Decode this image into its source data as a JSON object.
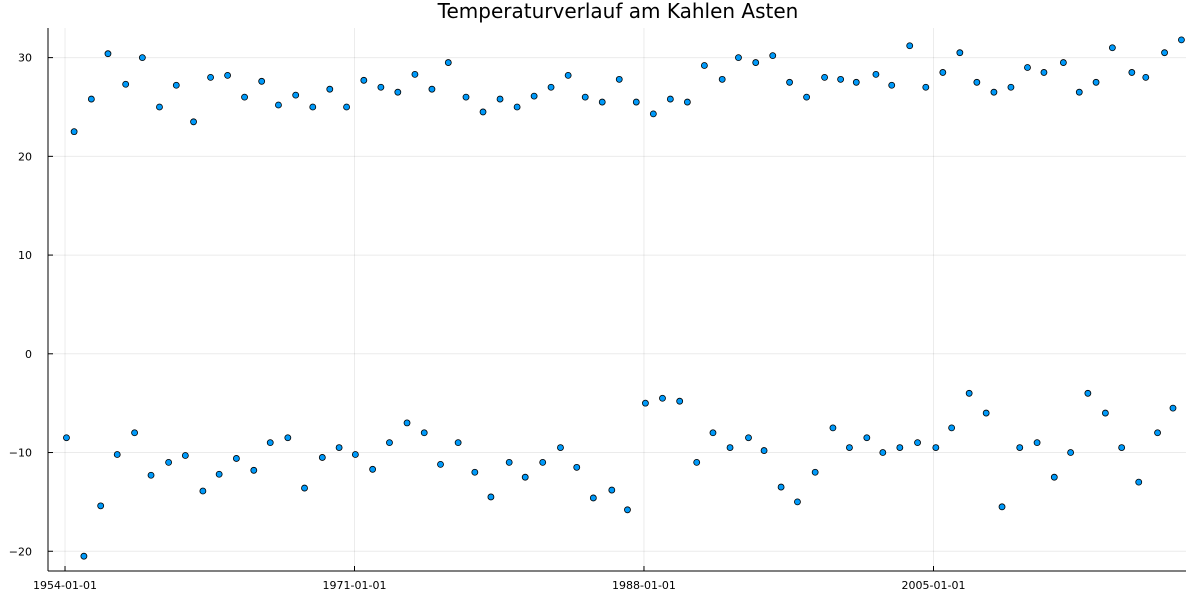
{
  "chart_data": {
    "type": "scatter",
    "title": "Temperaturverlauf am Kahlen Asten",
    "xlabel": "",
    "ylabel": "",
    "x_axis_type": "date",
    "xlim": [
      "1953-01-01",
      "2019-10-31"
    ],
    "ylim": [
      -22,
      33
    ],
    "x_ticks": [
      "1954-01-01",
      "1971-01-01",
      "1988-01-01",
      "2005-01-01"
    ],
    "y_ticks": [
      -20,
      -10,
      0,
      10,
      20,
      30
    ],
    "grid": true,
    "legend": "none",
    "marker_color": "#009AFA",
    "marker_edge_color": "#000000",
    "series": [
      {
        "points": [
          [
            "1954-02-01",
            -8.5
          ],
          [
            "1954-07-15",
            22.5
          ],
          [
            "1955-02-10",
            -20.5
          ],
          [
            "1955-07-20",
            25.8
          ],
          [
            "1956-02-05",
            -15.4
          ],
          [
            "1956-07-10",
            30.4
          ],
          [
            "1957-01-25",
            -10.2
          ],
          [
            "1957-07-25",
            27.3
          ],
          [
            "1958-02-01",
            -8.0
          ],
          [
            "1958-07-18",
            30.0
          ],
          [
            "1959-01-20",
            -12.3
          ],
          [
            "1959-07-20",
            25.0
          ],
          [
            "1960-02-01",
            -11.0
          ],
          [
            "1960-07-15",
            27.2
          ],
          [
            "1961-01-25",
            -10.3
          ],
          [
            "1961-07-20",
            23.5
          ],
          [
            "1962-02-05",
            -13.9
          ],
          [
            "1962-07-20",
            28.0
          ],
          [
            "1963-01-20",
            -12.2
          ],
          [
            "1963-07-20",
            28.2
          ],
          [
            "1964-01-25",
            -10.6
          ],
          [
            "1964-07-18",
            26.0
          ],
          [
            "1965-02-01",
            -11.8
          ],
          [
            "1965-07-20",
            27.6
          ],
          [
            "1966-01-20",
            -9.0
          ],
          [
            "1966-07-15",
            25.2
          ],
          [
            "1967-02-01",
            -8.5
          ],
          [
            "1967-07-20",
            26.2
          ],
          [
            "1968-01-25",
            -13.6
          ],
          [
            "1968-07-20",
            25.0
          ],
          [
            "1969-02-10",
            -10.5
          ],
          [
            "1969-07-20",
            26.8
          ],
          [
            "1970-02-05",
            -9.5
          ],
          [
            "1970-07-15",
            25.0
          ],
          [
            "1971-01-20",
            -10.2
          ],
          [
            "1971-07-20",
            27.7
          ],
          [
            "1972-01-25",
            -11.7
          ],
          [
            "1972-07-20",
            27.0
          ],
          [
            "1973-01-20",
            -9.0
          ],
          [
            "1973-07-18",
            26.5
          ],
          [
            "1974-02-01",
            -7.0
          ],
          [
            "1974-07-20",
            28.3
          ],
          [
            "1975-02-05",
            -8.0
          ],
          [
            "1975-07-20",
            26.8
          ],
          [
            "1976-01-20",
            -11.2
          ],
          [
            "1976-07-05",
            29.5
          ],
          [
            "1977-02-01",
            -9.0
          ],
          [
            "1977-07-20",
            26.0
          ],
          [
            "1978-01-25",
            -12.0
          ],
          [
            "1978-07-20",
            24.5
          ],
          [
            "1979-01-05",
            -14.5
          ],
          [
            "1979-07-20",
            25.8
          ],
          [
            "1980-02-01",
            -11.0
          ],
          [
            "1980-07-20",
            25.0
          ],
          [
            "1981-01-10",
            -12.5
          ],
          [
            "1981-07-20",
            26.1
          ],
          [
            "1982-01-20",
            -11.0
          ],
          [
            "1982-07-18",
            27.0
          ],
          [
            "1983-02-05",
            -9.5
          ],
          [
            "1983-07-20",
            28.2
          ],
          [
            "1984-01-20",
            -11.5
          ],
          [
            "1984-07-20",
            26.0
          ],
          [
            "1985-01-10",
            -14.6
          ],
          [
            "1985-07-20",
            25.5
          ],
          [
            "1986-02-10",
            -13.8
          ],
          [
            "1986-07-20",
            27.8
          ],
          [
            "1987-01-12",
            -15.8
          ],
          [
            "1987-07-20",
            25.5
          ],
          [
            "1988-02-01",
            -5.0
          ],
          [
            "1988-07-20",
            24.3
          ],
          [
            "1989-02-01",
            -4.5
          ],
          [
            "1989-07-20",
            25.8
          ],
          [
            "1990-02-05",
            -4.8
          ],
          [
            "1990-07-20",
            25.5
          ],
          [
            "1991-02-05",
            -11.0
          ],
          [
            "1991-07-20",
            29.2
          ],
          [
            "1992-01-20",
            -8.0
          ],
          [
            "1992-08-05",
            27.8
          ],
          [
            "1993-01-20",
            -9.5
          ],
          [
            "1993-07-20",
            30.0
          ],
          [
            "1994-02-20",
            -8.5
          ],
          [
            "1994-07-25",
            29.5
          ],
          [
            "1995-01-20",
            -9.8
          ],
          [
            "1995-07-25",
            30.2
          ],
          [
            "1996-01-20",
            -13.5
          ],
          [
            "1996-07-20",
            27.5
          ],
          [
            "1997-01-05",
            -15.0
          ],
          [
            "1997-07-20",
            26.0
          ],
          [
            "1998-01-20",
            -12.0
          ],
          [
            "1998-08-10",
            28.0
          ],
          [
            "1999-02-05",
            -7.5
          ],
          [
            "1999-07-20",
            27.8
          ],
          [
            "2000-01-25",
            -9.5
          ],
          [
            "2000-06-20",
            27.5
          ],
          [
            "2001-02-01",
            -8.5
          ],
          [
            "2001-08-15",
            28.3
          ],
          [
            "2002-01-10",
            -10.0
          ],
          [
            "2002-07-20",
            27.2
          ],
          [
            "2003-01-10",
            -9.5
          ],
          [
            "2003-08-10",
            31.2
          ],
          [
            "2004-01-25",
            -9.0
          ],
          [
            "2004-07-20",
            27.0
          ],
          [
            "2005-02-20",
            -9.5
          ],
          [
            "2005-07-20",
            28.5
          ],
          [
            "2006-01-25",
            -7.5
          ],
          [
            "2006-07-20",
            30.5
          ],
          [
            "2007-02-05",
            -4.0
          ],
          [
            "2007-07-20",
            27.5
          ],
          [
            "2008-02-05",
            -6.0
          ],
          [
            "2008-07-20",
            26.5
          ],
          [
            "2009-01-10",
            -15.5
          ],
          [
            "2009-07-20",
            27.0
          ],
          [
            "2010-01-25",
            -9.5
          ],
          [
            "2010-07-10",
            29.0
          ],
          [
            "2011-02-01",
            -9.0
          ],
          [
            "2011-06-28",
            28.5
          ],
          [
            "2012-02-05",
            -12.5
          ],
          [
            "2012-08-18",
            29.5
          ],
          [
            "2013-01-20",
            -10.0
          ],
          [
            "2013-07-25",
            26.5
          ],
          [
            "2014-01-25",
            -4.0
          ],
          [
            "2014-07-20",
            27.5
          ],
          [
            "2015-02-05",
            -6.0
          ],
          [
            "2015-07-05",
            31.0
          ],
          [
            "2016-01-20",
            -9.5
          ],
          [
            "2016-08-25",
            28.5
          ],
          [
            "2017-01-20",
            -13.0
          ],
          [
            "2017-06-20",
            28.0
          ],
          [
            "2018-02-28",
            -8.0
          ],
          [
            "2018-07-28",
            30.5
          ],
          [
            "2019-01-25",
            -5.5
          ],
          [
            "2019-07-25",
            31.8
          ]
        ]
      }
    ]
  }
}
